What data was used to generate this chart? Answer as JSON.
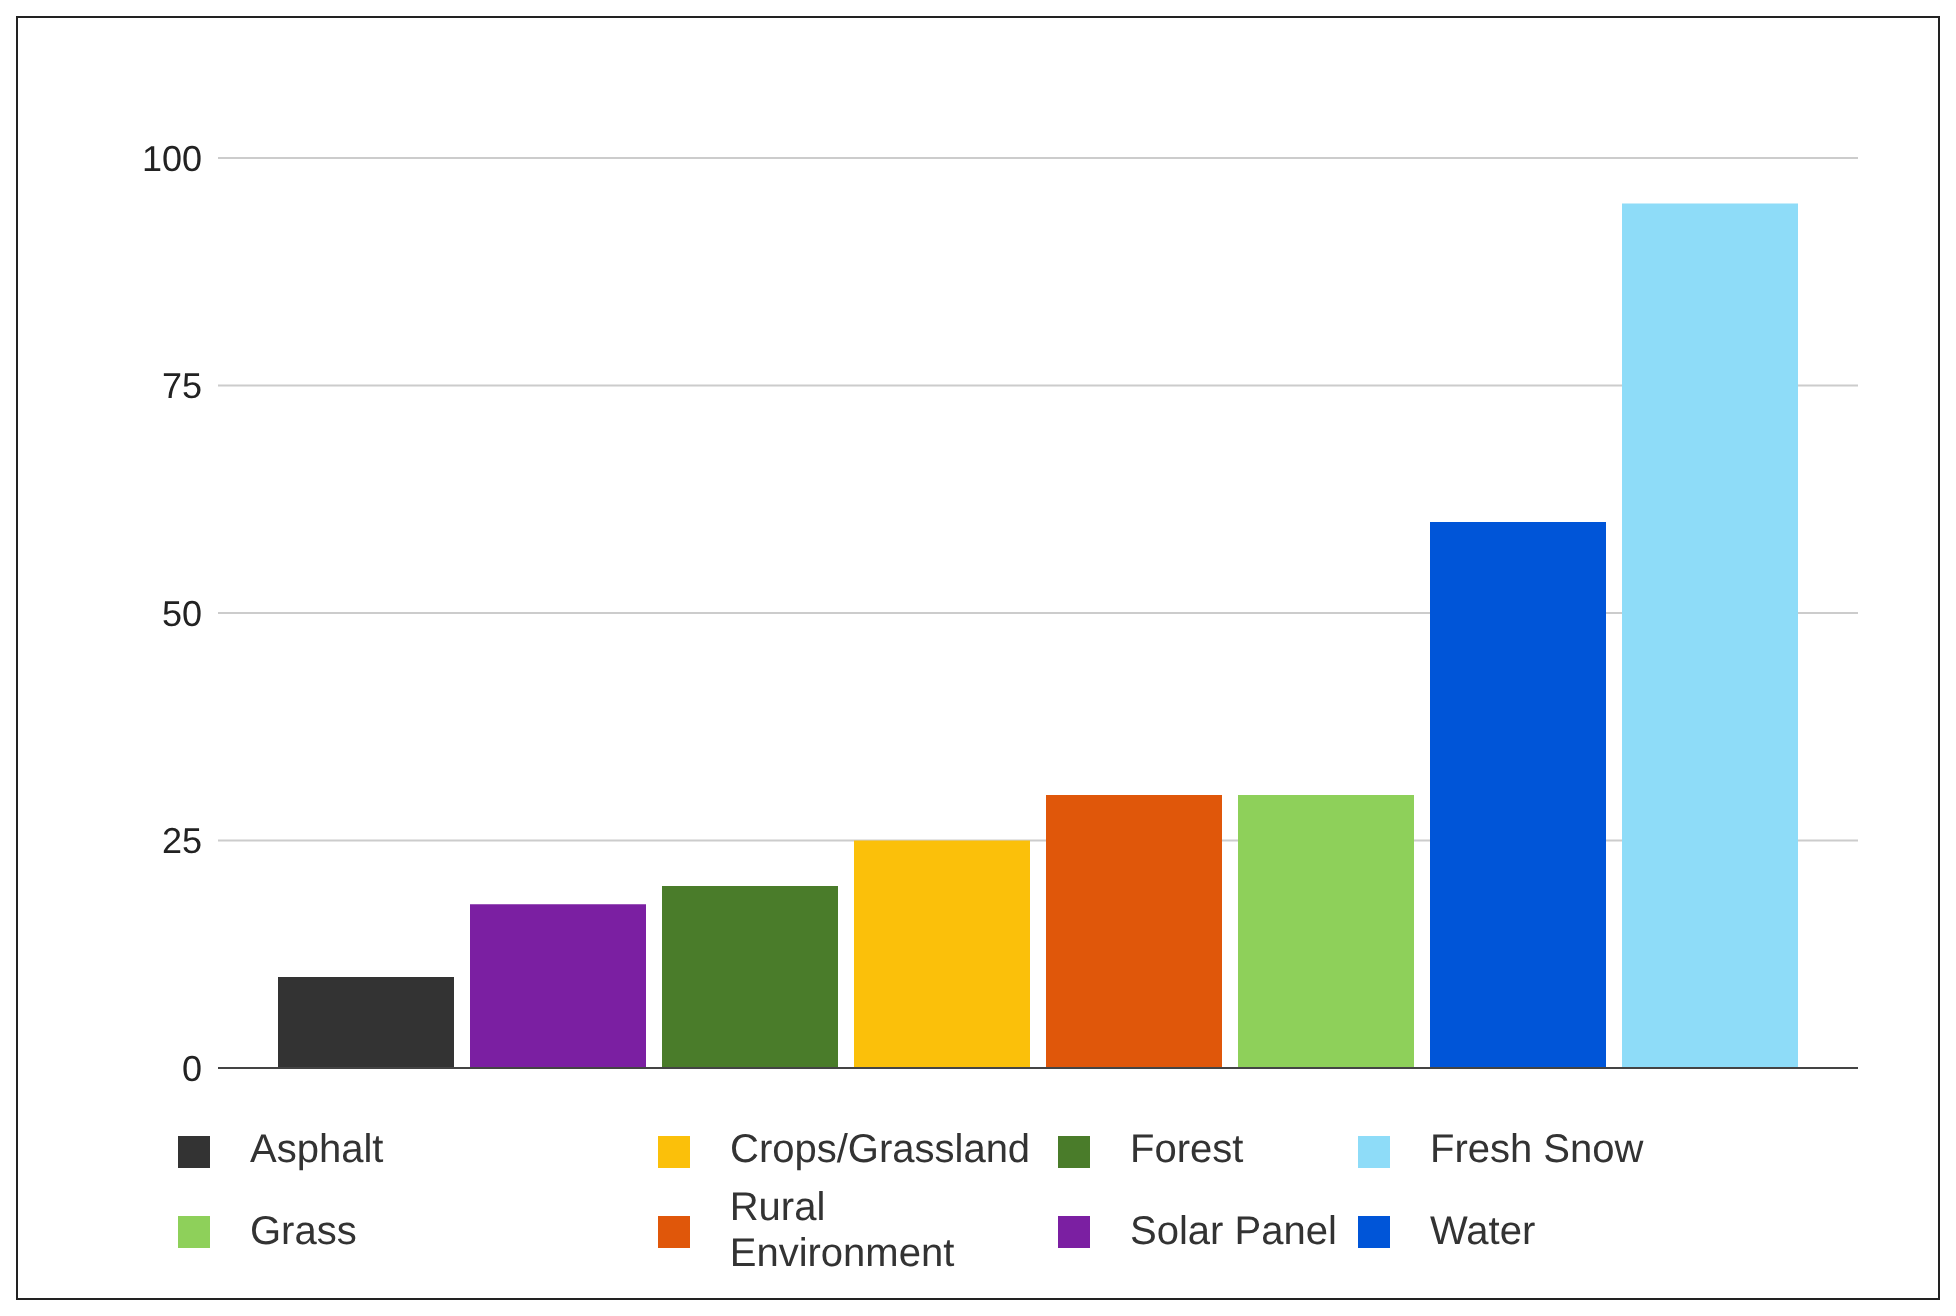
{
  "chart_data": {
    "type": "bar",
    "categories": [
      null
    ],
    "series": [
      {
        "name": "Asphalt",
        "color": "#333333",
        "values": [
          10
        ]
      },
      {
        "name": "Solar Panel",
        "color": "#7b1fa2",
        "values": [
          18
        ]
      },
      {
        "name": "Forest",
        "color": "#4a7c2a",
        "values": [
          20
        ]
      },
      {
        "name": "Crops/Grassland",
        "color": "#fbc00a",
        "values": [
          25
        ]
      },
      {
        "name": "Rural Environment",
        "color": "#e0570a",
        "values": [
          30
        ]
      },
      {
        "name": "Grass",
        "color": "#8ed05a",
        "values": [
          30
        ]
      },
      {
        "name": "Water",
        "color": "#0055d8",
        "values": [
          60
        ]
      },
      {
        "name": "Fresh Snow",
        "color": "#8edcf8",
        "values": [
          95
        ]
      }
    ],
    "ylim": [
      0,
      100
    ],
    "yticks": [
      0,
      25,
      50,
      75,
      100
    ],
    "grid": "y",
    "legend": "bottom"
  }
}
